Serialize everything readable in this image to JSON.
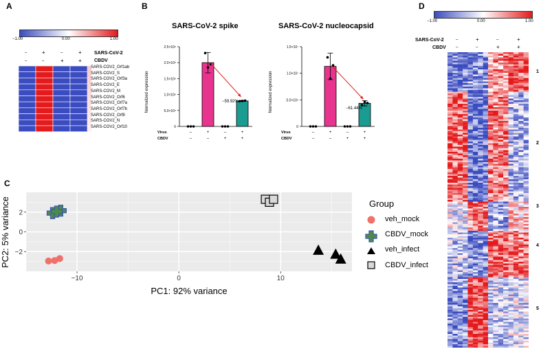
{
  "panelA": {
    "label": "A",
    "colorbar": {
      "min": "−1.00",
      "mid": "0.00",
      "max": "1.00"
    },
    "conditions": {
      "rows": [
        "SARS-CoV-2",
        "CBDV"
      ],
      "signs": [
        [
          "–",
          "+",
          "–",
          "+"
        ],
        [
          "–",
          "–",
          "+",
          "+"
        ]
      ]
    },
    "genes": [
      "SARS-COV2_Orf1ab",
      "SARS-COV2_S",
      "SARS-COV2_Orf3a",
      "SARS-COV2_E",
      "SARS-COV2_M",
      "SARS-COV2_Orf6",
      "SARS-COV2_Orf7a",
      "SARS-COV2_Orf7b",
      "SARS-COV2_Orf8",
      "SARS-COV2_N",
      "SARS-COV2_Orf10"
    ]
  },
  "panelB": {
    "label": "B",
    "bar_labels": {
      "virus": "Virus",
      "cbdv": "CBDV"
    },
    "virus_signs": [
      "–",
      "+",
      "–",
      "+"
    ],
    "cbdv_signs": [
      "–",
      "–",
      "+",
      "+"
    ],
    "plots": [
      {
        "title": "SARS-CoV-2 spike",
        "ylabel": "Normalized expression",
        "yticks": [
          "0",
          "5.0×10⁵",
          "1.0×10⁶",
          "1.5×10⁶",
          "2.0×10⁶",
          "2.5×10⁶"
        ],
        "reduction": "−59.92%"
      },
      {
        "title": "SARS-CoV-2 nucleocapsid",
        "ylabel": "Normalized expression",
        "yticks": [
          "0",
          "5.0×10⁶",
          "1.0×10⁷",
          "1.5×10⁷"
        ],
        "reduction": "−61.44%"
      }
    ]
  },
  "panelC": {
    "label": "C",
    "legend_title": "Group",
    "legend": [
      "veh_mock",
      "CBDV_mock",
      "veh_infect",
      "CBDV_infect"
    ]
  },
  "panelD": {
    "label": "D",
    "colorbar": {
      "min": "−1.00",
      "mid": "0.00",
      "max": "1.00"
    },
    "conditions": {
      "rows": [
        "SARS-CoV-2",
        "CBDV"
      ],
      "signs": [
        [
          "–",
          "+",
          "–",
          "+"
        ],
        [
          "–",
          "–",
          "+",
          "+"
        ]
      ]
    },
    "clusters": [
      "1",
      "2",
      "3",
      "4",
      "5"
    ]
  },
  "chart_data": [
    {
      "type": "bar",
      "title": "SARS-CoV-2 spike",
      "ylabel": "Normalized expression",
      "ylim": [
        0,
        2500000
      ],
      "categories": [
        "Virus– CBDV–",
        "Virus+ CBDV–",
        "Virus– CBDV+",
        "Virus+ CBDV+"
      ],
      "values": [
        0,
        2000000,
        0,
        800000
      ],
      "errors": [
        0,
        320000,
        0,
        15000
      ],
      "points": [
        [
          0,
          0,
          0
        ],
        [
          2300000,
          1850000,
          1950000
        ],
        [
          0,
          0,
          0
        ],
        [
          790000,
          800000,
          810000
        ]
      ]
    },
    {
      "type": "bar",
      "title": "SARS-CoV-2 nucleocapsid",
      "ylabel": "Normalized expression",
      "ylim": [
        0,
        15000000
      ],
      "categories": [
        "Virus– CBDV–",
        "Virus+ CBDV–",
        "Virus– CBDV+",
        "Virus+ CBDV+"
      ],
      "values": [
        0,
        11300000,
        0,
        4350000
      ],
      "errors": [
        0,
        2500000,
        0,
        500000
      ],
      "points": [
        [
          0,
          0,
          0
        ],
        [
          13000000,
          9000000,
          11500000
        ],
        [
          0,
          0,
          0
        ],
        [
          4000000,
          4600000,
          4400000
        ]
      ]
    },
    {
      "type": "scatter",
      "xlabel": "PC1: 92% variance",
      "ylabel": "PC2: 5% variance",
      "xlim": [
        -15,
        17
      ],
      "ylim": [
        -4,
        4
      ],
      "xticks": [
        -10,
        0,
        10
      ],
      "yticks": [
        -2,
        0,
        2
      ],
      "series": [
        {
          "name": "veh_mock",
          "color": "#f0706a",
          "marker": "circle",
          "x": [
            -12.8,
            -12.2,
            -11.7
          ],
          "y": [
            -2.95,
            -2.9,
            -2.7
          ]
        },
        {
          "name": "CBDV_mock",
          "color": "#4f8a4c",
          "marker": "plus",
          "x": [
            -12.4,
            -11.6,
            -12.0
          ],
          "y": [
            1.9,
            2.15,
            2.05
          ]
        },
        {
          "name": "veh_infect",
          "color": "#000000",
          "marker": "triangle",
          "x": [
            13.7,
            15.4,
            15.9
          ],
          "y": [
            -1.9,
            -2.3,
            -2.8
          ]
        },
        {
          "name": "CBDV_infect",
          "color": "#d9d9d9",
          "marker": "square",
          "x": [
            8.5,
            8.9,
            9.3
          ],
          "y": [
            3.3,
            3.0,
            3.3
          ]
        }
      ]
    }
  ]
}
